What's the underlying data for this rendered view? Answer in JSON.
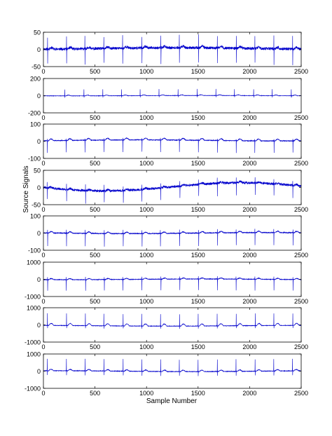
{
  "figure": {
    "ylabel": "Source Signals",
    "xlabel": "Sample Number"
  },
  "chart_data": [
    {
      "type": "line",
      "ylim": [
        -50,
        50
      ],
      "yticks": [
        "50",
        "0",
        "-50"
      ],
      "xlim": [
        0,
        2500
      ],
      "xticks": [
        "0",
        "500",
        "1000",
        "1500",
        "2000",
        "2500"
      ],
      "series": [
        {
          "color": "#0000cc",
          "period": 183,
          "phase": 40,
          "spike_up": 35,
          "spike_down": -45,
          "baseline": 3,
          "noise": 8,
          "wander": 2,
          "t_wave": 4,
          "seed": 11
        }
      ]
    },
    {
      "type": "line",
      "ylim": [
        -200,
        200
      ],
      "yticks": [
        "200",
        "0",
        "-200"
      ],
      "xlim": [
        0,
        2500
      ],
      "xticks": [
        "0",
        "500",
        "1000",
        "1500",
        "2000",
        "2500"
      ],
      "series": [
        {
          "color": "#0000cc",
          "period": 183,
          "phase": 210,
          "spike_up": 75,
          "spike_down": -20,
          "baseline": 0,
          "noise": 4,
          "wander": 2,
          "t_wave": 8,
          "seed": 23
        }
      ]
    },
    {
      "type": "line",
      "ylim": [
        -100,
        100
      ],
      "yticks": [
        "100",
        "0",
        "-100"
      ],
      "xlim": [
        0,
        2500
      ],
      "xticks": [
        "0",
        "500",
        "1000",
        "1500",
        "2000",
        "2500"
      ],
      "series": [
        {
          "color": "#0000cc",
          "period": 183,
          "phase": 40,
          "spike_up": 10,
          "spike_down": -70,
          "baseline": 5,
          "noise": 4,
          "wander": 3,
          "t_wave": 10,
          "seed": 37
        }
      ]
    },
    {
      "type": "line",
      "ylim": [
        -50,
        50
      ],
      "yticks": [
        "50",
        "0",
        "-50"
      ],
      "xlim": [
        0,
        2500
      ],
      "xticks": [
        "0",
        "500",
        "1000",
        "1500",
        "2000",
        "2500"
      ],
      "series": [
        {
          "color": "#0000cc",
          "period": 183,
          "phase": 40,
          "spike_up": 15,
          "spike_down": -35,
          "baseline": 2,
          "noise": 7,
          "wander": 12,
          "t_wave": 3,
          "seed": 41
        }
      ]
    },
    {
      "type": "line",
      "ylim": [
        -100,
        100
      ],
      "yticks": [
        "100",
        "0",
        "-100"
      ],
      "xlim": [
        0,
        2500
      ],
      "xticks": [
        "0",
        "500",
        "1000",
        "1500",
        "2000",
        "2500"
      ],
      "series": [
        {
          "color": "#0000cc",
          "period": 183,
          "phase": 40,
          "spike_up": 20,
          "spike_down": -75,
          "baseline": 0,
          "noise": 5,
          "wander": 3,
          "t_wave": 8,
          "seed": 53
        }
      ]
    },
    {
      "type": "line",
      "ylim": [
        -1000,
        1000
      ],
      "yticks": [
        "1000",
        "0",
        "-1000"
      ],
      "xlim": [
        0,
        2500
      ],
      "xticks": [
        "0",
        "500",
        "1000",
        "1500",
        "2000",
        "2500"
      ],
      "series": [
        {
          "color": "#0000cc",
          "period": 183,
          "phase": 40,
          "spike_up": 150,
          "spike_down": -650,
          "baseline": 0,
          "noise": 30,
          "wander": 20,
          "t_wave": 60,
          "seed": 67
        }
      ]
    },
    {
      "type": "line",
      "ylim": [
        -1000,
        1000
      ],
      "yticks": [
        "1000",
        "0",
        "-1000"
      ],
      "xlim": [
        0,
        2500
      ],
      "xticks": [
        "0",
        "500",
        "1000",
        "1500",
        "2000",
        "2500"
      ],
      "series": [
        {
          "color": "#0000cc",
          "period": 183,
          "phase": 40,
          "spike_up": 700,
          "spike_down": -150,
          "baseline": -50,
          "noise": 25,
          "wander": 20,
          "t_wave": 120,
          "seed": 71
        }
      ]
    },
    {
      "type": "line",
      "ylim": [
        -1000,
        1000
      ],
      "yticks": [
        "1000",
        "0",
        "-1000"
      ],
      "xlim": [
        0,
        2500
      ],
      "xticks": [
        "0",
        "500",
        "1000",
        "1500",
        "2000",
        "2500"
      ],
      "series": [
        {
          "color": "#0000cc",
          "period": 183,
          "phase": 40,
          "spike_up": 700,
          "spike_down": -250,
          "baseline": 0,
          "noise": 30,
          "wander": 25,
          "t_wave": 80,
          "seed": 83
        }
      ]
    }
  ]
}
